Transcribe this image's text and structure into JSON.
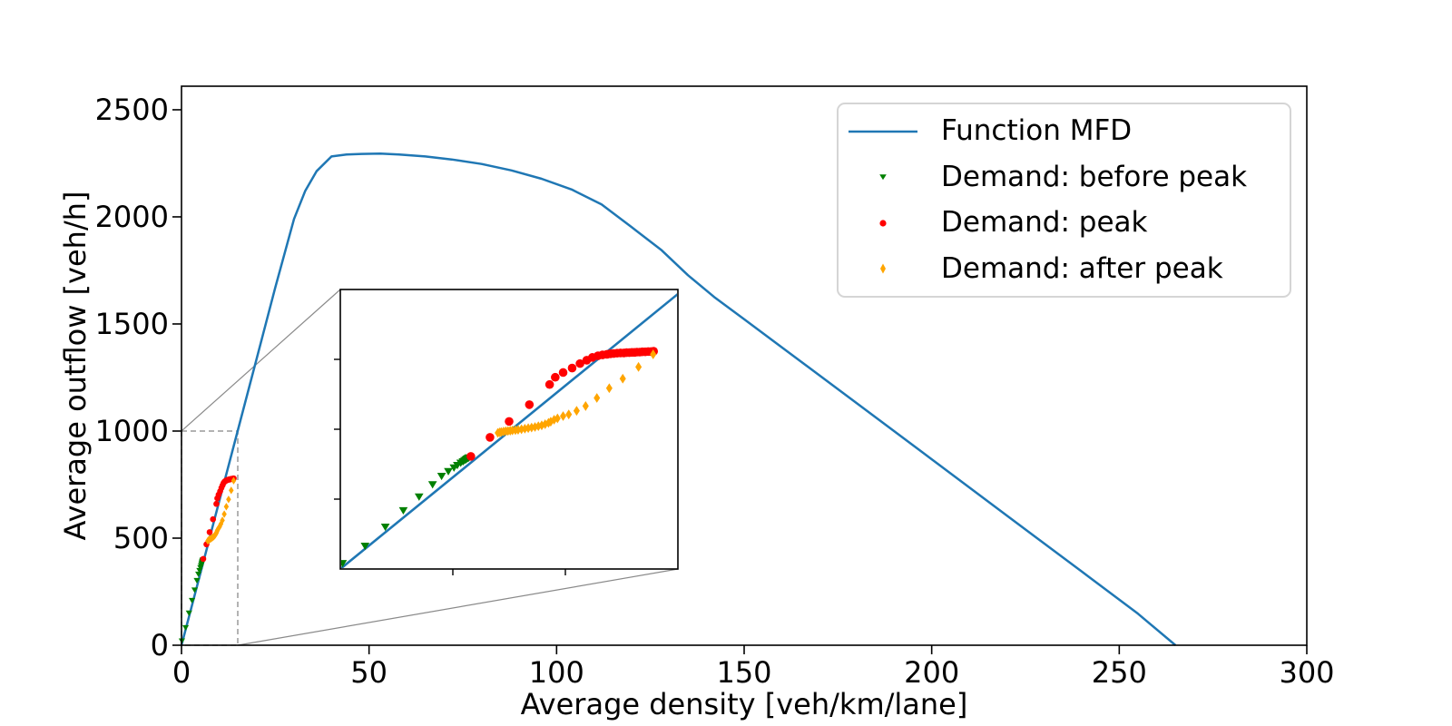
{
  "chart_data": {
    "type": "line",
    "title": "",
    "xlabel": "Average density [veh/km/lane]",
    "ylabel": "Average outflow [veh/h]",
    "xlim": [
      0,
      300
    ],
    "ylim": [
      0,
      2610
    ],
    "xticks": [
      0,
      50,
      100,
      150,
      200,
      250,
      300
    ],
    "yticks": [
      0,
      500,
      1000,
      1500,
      2000,
      2500
    ],
    "grid": false,
    "legend_position": "upper right",
    "legend_items": [
      "Function MFD",
      "Demand: before peak",
      "Demand: peak",
      "Demand: after peak"
    ],
    "mfd_line": {
      "name": "Function MFD",
      "color": "#1f77b4",
      "points": [
        [
          0,
          0
        ],
        [
          5,
          334
        ],
        [
          10,
          668
        ],
        [
          15,
          1002
        ],
        [
          20,
          1336
        ],
        [
          25,
          1670
        ],
        [
          30,
          1990
        ],
        [
          33,
          2122
        ],
        [
          36,
          2213
        ],
        [
          40,
          2282
        ],
        [
          44,
          2291
        ],
        [
          48,
          2294
        ],
        [
          53,
          2295
        ],
        [
          58,
          2291
        ],
        [
          65,
          2282
        ],
        [
          72,
          2268
        ],
        [
          80,
          2247
        ],
        [
          88,
          2217
        ],
        [
          96,
          2178
        ],
        [
          104,
          2128
        ],
        [
          112,
          2058
        ],
        [
          120,
          1952
        ],
        [
          128,
          1844
        ],
        [
          135,
          1728
        ],
        [
          142,
          1626
        ],
        [
          150,
          1522
        ],
        [
          165,
          1326
        ],
        [
          180,
          1130
        ],
        [
          200,
          868
        ],
        [
          220,
          606
        ],
        [
          240,
          344
        ],
        [
          255,
          147
        ],
        [
          265,
          0
        ]
      ]
    },
    "series": [
      {
        "name": "Demand: before peak",
        "marker": "triangle-down",
        "color": "#008000",
        "points": [
          [
            0.1,
            20
          ],
          [
            1.1,
            82
          ],
          [
            2.0,
            150
          ],
          [
            2.8,
            209
          ],
          [
            3.5,
            258
          ],
          [
            4.1,
            302
          ],
          [
            4.5,
            332
          ],
          [
            4.8,
            349
          ],
          [
            5.05,
            362
          ],
          [
            5.2,
            371
          ],
          [
            5.35,
            379
          ],
          [
            5.45,
            384
          ],
          [
            5.52,
            388
          ],
          [
            5.58,
            391
          ],
          [
            5.63,
            394
          ],
          [
            5.68,
            396
          ],
          [
            5.72,
            398
          ]
        ]
      },
      {
        "name": "Demand: peak",
        "marker": "circle",
        "color": "#ff0000",
        "points": [
          [
            5.8,
            403
          ],
          [
            6.65,
            471
          ],
          [
            7.5,
            528
          ],
          [
            8.4,
            588
          ],
          [
            9.3,
            660
          ],
          [
            9.55,
            686
          ],
          [
            9.9,
            703
          ],
          [
            10.3,
            719
          ],
          [
            10.65,
            735
          ],
          [
            10.95,
            747
          ],
          [
            11.2,
            757
          ],
          [
            11.45,
            763
          ],
          [
            11.65,
            766
          ],
          [
            11.85,
            768
          ],
          [
            12.0,
            770
          ],
          [
            12.15,
            771
          ],
          [
            12.3,
            772
          ],
          [
            12.45,
            773
          ],
          [
            12.6,
            773
          ],
          [
            12.72,
            774
          ],
          [
            12.84,
            774
          ],
          [
            12.95,
            775
          ],
          [
            13.07,
            775
          ],
          [
            13.18,
            776
          ],
          [
            13.3,
            776
          ],
          [
            13.42,
            777
          ],
          [
            13.55,
            777
          ],
          [
            13.68,
            778
          ],
          [
            13.8,
            778
          ],
          [
            13.92,
            779
          ]
        ]
      },
      {
        "name": "Demand: after peak",
        "marker": "diamond",
        "color": "#ffa500",
        "points": [
          [
            7.0,
            487
          ],
          [
            7.08,
            489
          ],
          [
            7.15,
            490
          ],
          [
            7.25,
            492
          ],
          [
            7.35,
            493
          ],
          [
            7.45,
            494
          ],
          [
            7.55,
            495
          ],
          [
            7.65,
            496
          ],
          [
            7.78,
            497
          ],
          [
            7.9,
            498
          ],
          [
            8.05,
            500
          ],
          [
            8.2,
            502
          ],
          [
            8.35,
            504
          ],
          [
            8.5,
            506
          ],
          [
            8.65,
            508
          ],
          [
            8.8,
            511
          ],
          [
            8.95,
            514
          ],
          [
            9.1,
            518
          ],
          [
            9.25,
            523
          ],
          [
            9.35,
            527
          ],
          [
            9.5,
            534
          ],
          [
            9.65,
            539
          ],
          [
            9.9,
            547
          ],
          [
            10.15,
            553
          ],
          [
            10.5,
            566
          ],
          [
            10.9,
            583
          ],
          [
            11.4,
            612
          ],
          [
            11.95,
            647
          ],
          [
            12.55,
            681
          ],
          [
            13.25,
            723
          ],
          [
            13.9,
            768
          ]
        ]
      }
    ],
    "inset": {
      "xlim": [
        0,
        15
      ],
      "ylim": [
        0,
        1000
      ],
      "xticks": [
        5,
        10
      ],
      "yticks": [
        250,
        500,
        750
      ],
      "tick_labels_shown": false,
      "zoom_region": {
        "x": [
          0,
          15
        ],
        "y": [
          0,
          1000
        ]
      }
    },
    "colors": {
      "frame": "#000000",
      "zoom_dash": "#9a9a9a",
      "connector": "#8a8a8a",
      "tick_text": "#000000"
    }
  }
}
